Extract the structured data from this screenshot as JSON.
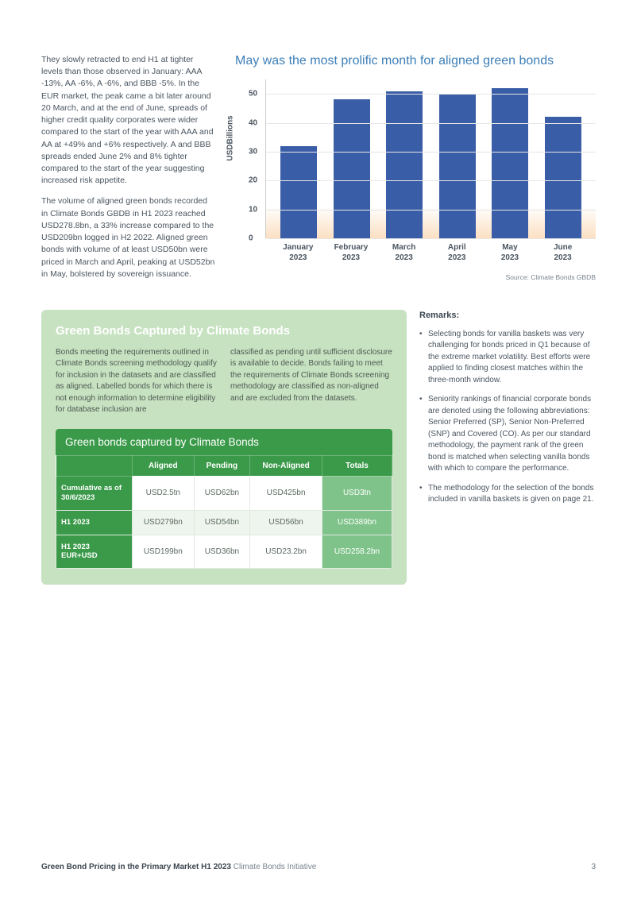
{
  "intro": {
    "para1": "They slowly retracted to end H1 at tighter levels than those observed in January: AAA -13%, AA -6%, A -6%, and BBB -5%. In the EUR market, the peak came a bit later around 20 March, and at the end of June, spreads of higher credit quality corporates were wider compared to the start of the year with AAA and AA at +49% and +6% respectively. A and BBB spreads ended June 2% and 8% tighter compared to the start of the year suggesting increased risk appetite.",
    "para2": "The volume of aligned green bonds recorded in Climate Bonds GBDB in H1 2023 reached USD278.8bn, a 33% increase compared to the USD209bn logged in H2 2022. Aligned green bonds with volume of at least USD50bn were priced in March and April, peaking at USD52bn in May, bolstered by sovereign issuance."
  },
  "chart": {
    "type": "bar",
    "title": "May was the most prolific month for aligned green bonds",
    "y_label": "USDBillions",
    "y_max": 55,
    "y_ticks": [
      0,
      10,
      20,
      30,
      40,
      50
    ],
    "bar_color": "#3a5da8",
    "grid_color": "#e6e6e6",
    "background_color": "#ffffff",
    "gradient_bottom": "rgba(245,165,80,0.35)",
    "title_color": "#3d7fb8",
    "title_fontsize": 16,
    "label_fontsize": 10,
    "categories": [
      "January 2023",
      "February 2023",
      "March 2023",
      "April 2023",
      "May 2023",
      "June 2023"
    ],
    "values": [
      32,
      48,
      51,
      50,
      52,
      42
    ],
    "source": "Source: Climate Bonds GBDB"
  },
  "green_card": {
    "title": "Green Bonds Captured by Climate Bonds",
    "col1": "Bonds meeting the requirements outlined in Climate Bonds screening methodology qualify for inclusion in the datasets and are classified as aligned. Labelled bonds for which there is not enough information to determine eligibility for database inclusion are",
    "col2": "classified as pending until sufficient disclosure is available to decide. Bonds failing to meet the requirements of Climate Bonds screening methodology are classified as non-aligned and are excluded from the datasets.",
    "table": {
      "inner_title": "Green bonds captured by Climate Bonds",
      "columns": [
        "Aligned",
        "Pending",
        "Non-Aligned",
        "Totals"
      ],
      "rows": [
        {
          "label": "Cumulative as of 30/6/2023",
          "cells": [
            "USD2.5tn",
            "USD62bn",
            "USD425bn",
            "USD3tn"
          ]
        },
        {
          "label": "H1 2023",
          "cells": [
            "USD279bn",
            "USD54bn",
            "USD56bn",
            "USD389bn"
          ]
        },
        {
          "label": "H1 2023 EUR+USD",
          "cells": [
            "USD199bn",
            "USD36bn",
            "USD23.2bn",
            "USD258.2bn"
          ]
        }
      ],
      "header_bg": "#3b9a4a",
      "total_col_bg": "#7fc38a",
      "alt_row_bg": "#eef5ee"
    },
    "card_bg": "#c7e2c1"
  },
  "remarks": {
    "title": "Remarks:",
    "items": [
      "Selecting bonds for vanilla baskets was very challenging for bonds priced in Q1 because of the extreme market volatility. Best efforts were applied to finding closest matches within the three-month window.",
      "Seniority rankings of financial corporate bonds are denoted using the following abbreviations: Senior Preferred (SP), Senior Non-Preferred (SNP) and Covered (CO). As per our standard methodology, the payment rank of the green bond is matched when selecting vanilla bonds with which to compare the performance.",
      "The methodology for the selection of the bonds included in vanilla baskets is given on page 21."
    ]
  },
  "footer": {
    "title": "Green Bond Pricing in the Primary Market H1 2023",
    "sub": "Climate Bonds Initiative",
    "page": "3"
  }
}
